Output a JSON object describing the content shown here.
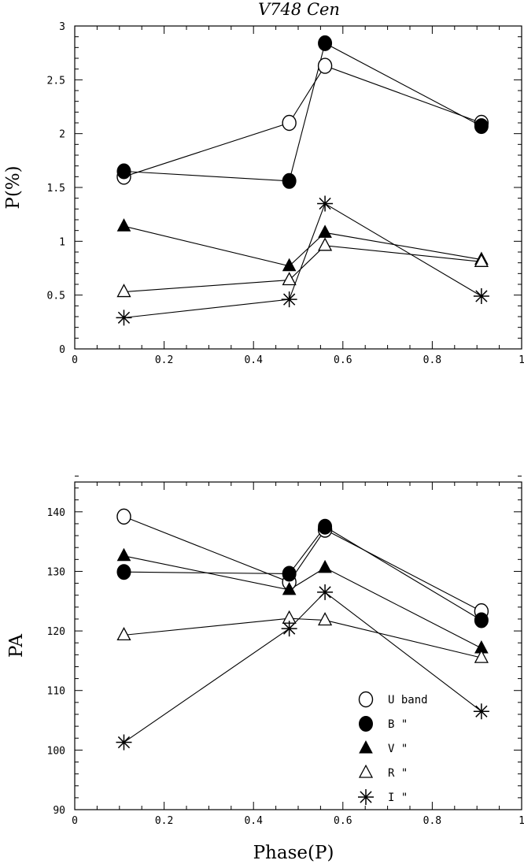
{
  "title": "V748 Cen",
  "legend": {
    "items": [
      {
        "marker": "open-circle",
        "label": "U band"
      },
      {
        "marker": "filled-circle",
        "label": "B \""
      },
      {
        "marker": "filled-triangle",
        "label": "V \""
      },
      {
        "marker": "open-triangle",
        "label": "R \""
      },
      {
        "marker": "asterisk",
        "label": "I \""
      }
    ]
  },
  "chart_data": [
    {
      "type": "line",
      "title": "V748 Cen",
      "xlabel": "",
      "ylabel": "P(%)",
      "xlim": [
        0,
        1
      ],
      "ylim": [
        0,
        3
      ],
      "xticks": [
        "0",
        "0.2",
        "0.4",
        "0.6",
        "0.8",
        "1"
      ],
      "yticks": [
        "0",
        "0.5",
        "1",
        "1.5",
        "2",
        "2.5",
        "3"
      ],
      "series": [
        {
          "name": "U band",
          "marker": "open-circle",
          "x": [
            0.11,
            0.48,
            0.56,
            0.91
          ],
          "y": [
            1.6,
            2.1,
            2.63,
            2.1
          ]
        },
        {
          "name": "B \"",
          "marker": "filled-circle",
          "x": [
            0.11,
            0.48,
            0.56,
            0.91
          ],
          "y": [
            1.65,
            1.56,
            2.84,
            2.07
          ]
        },
        {
          "name": "V \"",
          "marker": "filled-triangle",
          "x": [
            0.11,
            0.48,
            0.56,
            0.91
          ],
          "y": [
            1.14,
            0.77,
            1.08,
            0.83
          ]
        },
        {
          "name": "R \"",
          "marker": "open-triangle",
          "x": [
            0.11,
            0.48,
            0.56,
            0.91
          ],
          "y": [
            0.53,
            0.64,
            0.96,
            0.81
          ]
        },
        {
          "name": "I \"",
          "marker": "asterisk",
          "x": [
            0.11,
            0.48,
            0.56,
            0.91
          ],
          "y": [
            0.29,
            0.46,
            1.35,
            0.49
          ]
        }
      ]
    },
    {
      "type": "line",
      "title": "",
      "xlabel": "Phase(P)",
      "ylabel": "PA",
      "xlim": [
        0,
        1
      ],
      "ylim": [
        90,
        145
      ],
      "xticks": [
        "0",
        "0.2",
        "0.4",
        "0.6",
        "0.8",
        "1"
      ],
      "yticks": [
        "90",
        "100",
        "110",
        "120",
        "130",
        "140"
      ],
      "series": [
        {
          "name": "U band",
          "marker": "open-circle",
          "x": [
            0.11,
            0.48,
            0.56,
            0.91
          ],
          "y": [
            139.2,
            128.2,
            137.0,
            123.3
          ]
        },
        {
          "name": "B \"",
          "marker": "filled-circle",
          "x": [
            0.11,
            0.48,
            0.56,
            0.91
          ],
          "y": [
            129.9,
            129.6,
            137.5,
            121.8
          ]
        },
        {
          "name": "V \"",
          "marker": "filled-triangle",
          "x": [
            0.11,
            0.48,
            0.56,
            0.91
          ],
          "y": [
            132.6,
            126.9,
            130.6,
            117.1
          ]
        },
        {
          "name": "R \"",
          "marker": "open-triangle",
          "x": [
            0.11,
            0.48,
            0.56,
            0.91
          ],
          "y": [
            119.3,
            122.1,
            121.8,
            115.5
          ]
        },
        {
          "name": "I \"",
          "marker": "asterisk",
          "x": [
            0.11,
            0.48,
            0.56,
            0.91
          ],
          "y": [
            101.3,
            120.4,
            126.5,
            106.5
          ]
        }
      ]
    }
  ]
}
